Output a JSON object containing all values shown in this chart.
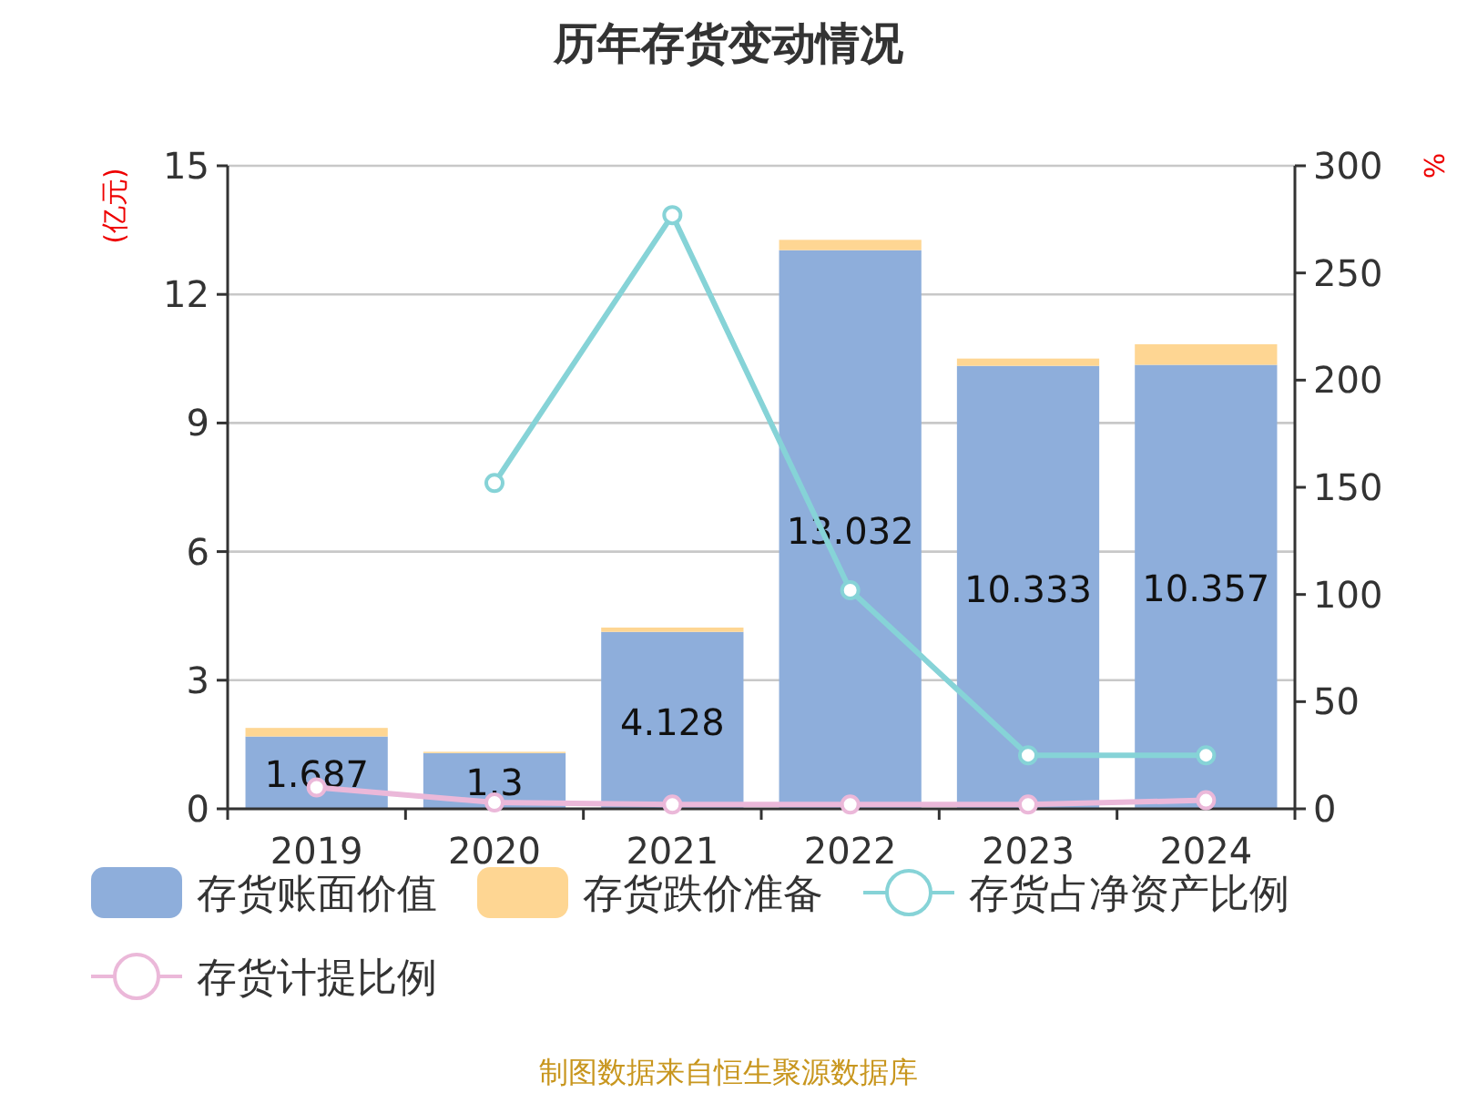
{
  "chart_data": {
    "type": "bar",
    "title": "历年存货变动情况",
    "ylabel": "(亿元)",
    "y2label": "%",
    "stacked": true,
    "grid": "y",
    "legend": "bottom",
    "categories": [
      "2019",
      "2020",
      "2021",
      "2022",
      "2023",
      "2024"
    ],
    "ylim": [
      0,
      15
    ],
    "yticks": [
      0,
      3,
      6,
      9,
      12,
      15
    ],
    "y2lim": [
      0,
      300
    ],
    "y2ticks": [
      0,
      50,
      100,
      150,
      200,
      250,
      300
    ],
    "series": [
      {
        "name": "存货账面价值",
        "color": "#8eaedb",
        "values": [
          1.687,
          1.3,
          4.128,
          13.032,
          10.333,
          10.357
        ],
        "value_labels": [
          "1.687",
          "1.3",
          "4.128",
          "13.032",
          "10.333",
          "10.357"
        ]
      },
      {
        "name": "存货跌价准备",
        "color": "#fed693",
        "values": [
          0.2,
          0.03,
          0.1,
          0.24,
          0.17,
          0.48
        ]
      },
      {
        "name": "存货占净资产比例",
        "type": "line",
        "axis": "y2",
        "marker": "circle",
        "color": "#86d3d7",
        "values": [
          null,
          152,
          277,
          102,
          25,
          25
        ]
      },
      {
        "name": "存货计提比例",
        "type": "line",
        "axis": "y2",
        "marker": "circle",
        "color": "#ebb8d9",
        "values": [
          10,
          3,
          2,
          2,
          2,
          4
        ]
      }
    ],
    "annotations": [
      "制图数据来自恒生聚源数据库"
    ]
  }
}
